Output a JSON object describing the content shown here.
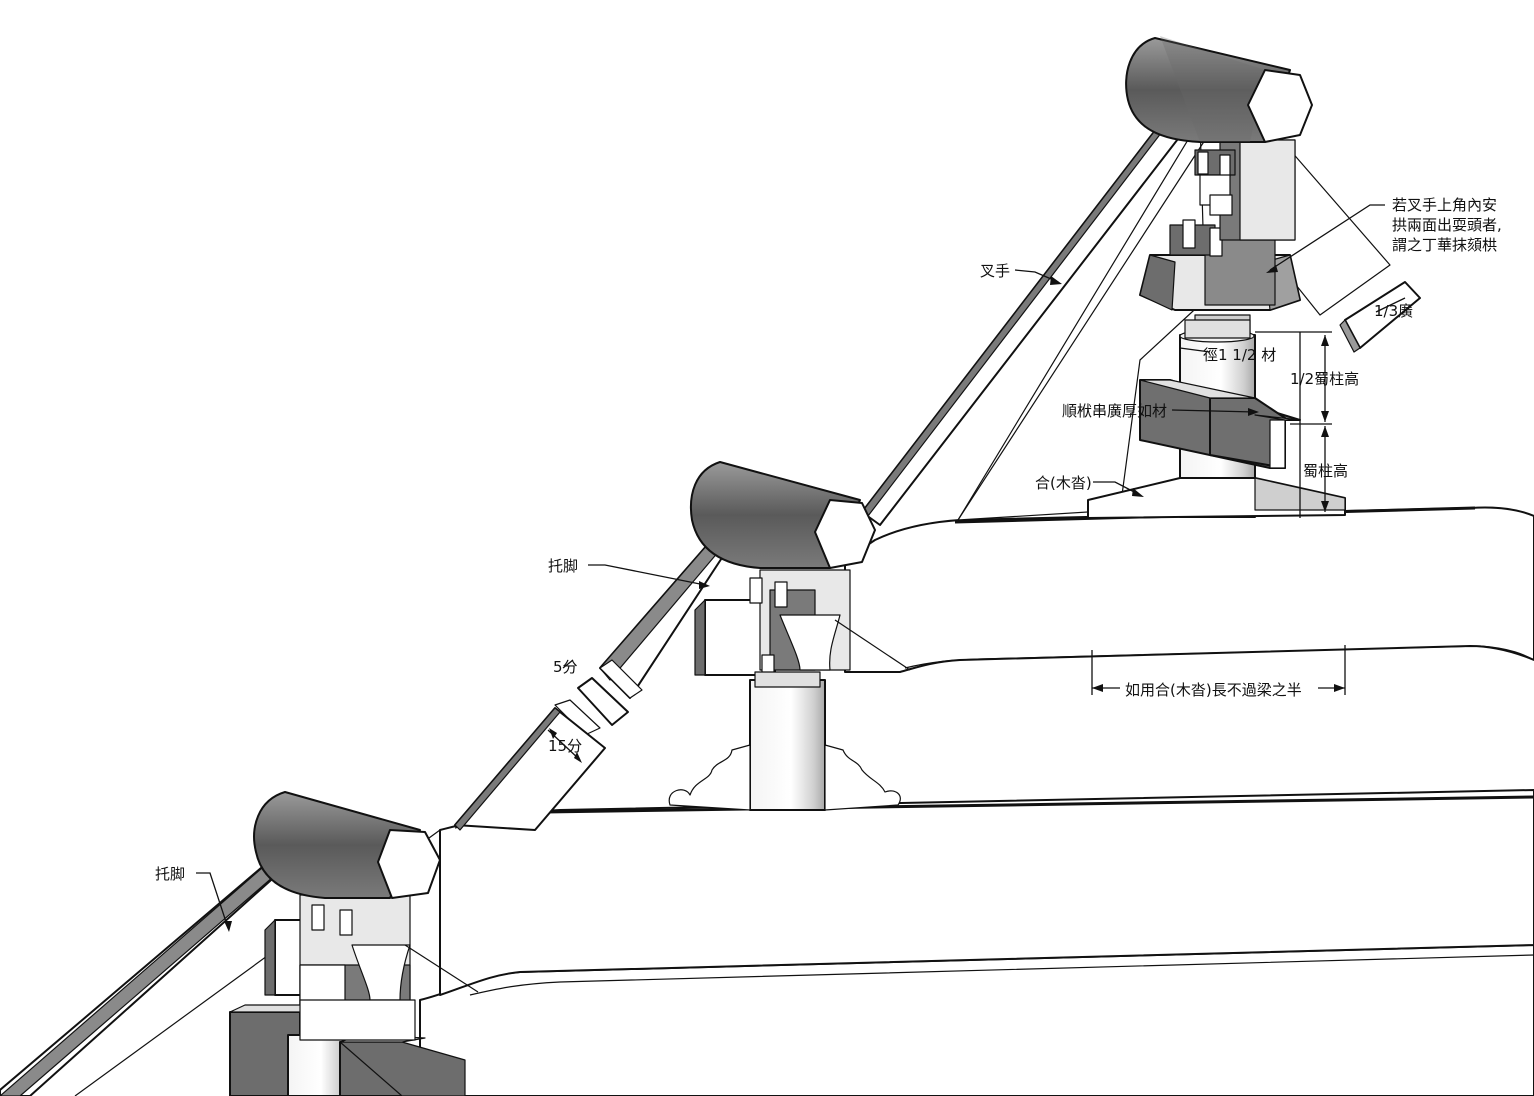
{
  "labels": {
    "chashou": "叉手",
    "tuojiao_upper": "托脚",
    "tuojiao_lower": "托脚",
    "note_line1": "若叉手上角內安",
    "note_line2": "拱兩面出耍頭者,",
    "note_line3": "謂之丁華抹頦栱",
    "third_width": "1/3廣",
    "diameter": "徑1 1/2 材",
    "half_post": "1/2蜀柱高",
    "post_height": "蜀柱高",
    "shunfu": "順栿串廣厚如材",
    "hexi": "合(木沓)",
    "hexi_length": "如用合(木沓)長不過梁之半",
    "five_fen": "5分",
    "fifteen_fen": "15分"
  },
  "colors": {
    "dark_face": "#6d6d6d",
    "mid_face": "#9c9c9c",
    "light_face": "#e6e6e6",
    "white_face": "#ffffff",
    "line": "#111111"
  }
}
